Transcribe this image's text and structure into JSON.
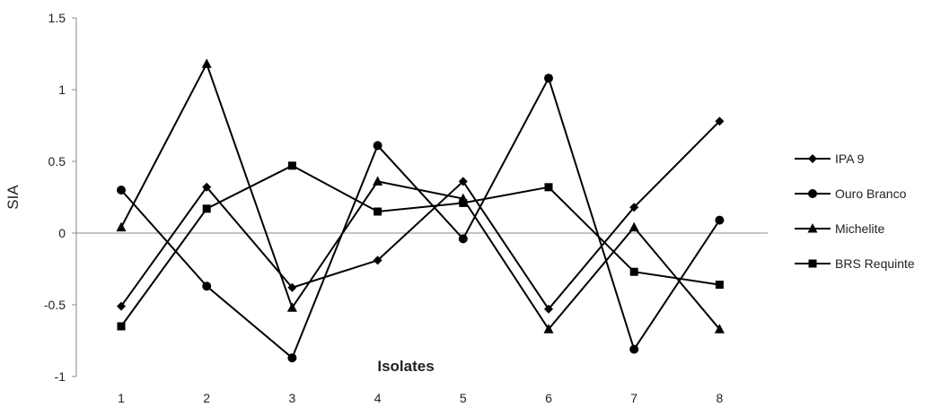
{
  "chart_data": {
    "type": "line",
    "title": "",
    "xlabel": "Isolates",
    "ylabel": "SIA",
    "categories": [
      "1",
      "2",
      "3",
      "4",
      "5",
      "6",
      "7",
      "8"
    ],
    "yticks": [
      "-1",
      "-0.5",
      "0",
      "0.5",
      "1",
      "1.5"
    ],
    "ylim": [
      -1,
      1.5
    ],
    "grid": false,
    "legend_position": "right",
    "series": [
      {
        "name": "IPA 9",
        "marker": "diamond",
        "values": [
          -0.51,
          0.32,
          -0.38,
          -0.19,
          0.36,
          -0.53,
          0.18,
          0.78
        ]
      },
      {
        "name": "Ouro Branco",
        "marker": "circle",
        "values": [
          0.3,
          -0.37,
          -0.87,
          0.61,
          -0.04,
          1.08,
          -0.81,
          0.09
        ]
      },
      {
        "name": "Michelite",
        "marker": "triangle",
        "values": [
          0.04,
          1.18,
          -0.52,
          0.36,
          0.24,
          -0.67,
          0.04,
          -0.67
        ]
      },
      {
        "name": "BRS Requinte",
        "marker": "square",
        "values": [
          -0.65,
          0.17,
          0.47,
          0.15,
          0.21,
          0.32,
          -0.27,
          -0.36
        ]
      }
    ],
    "colors": {
      "line": "#000000",
      "axis": "#888888"
    }
  }
}
